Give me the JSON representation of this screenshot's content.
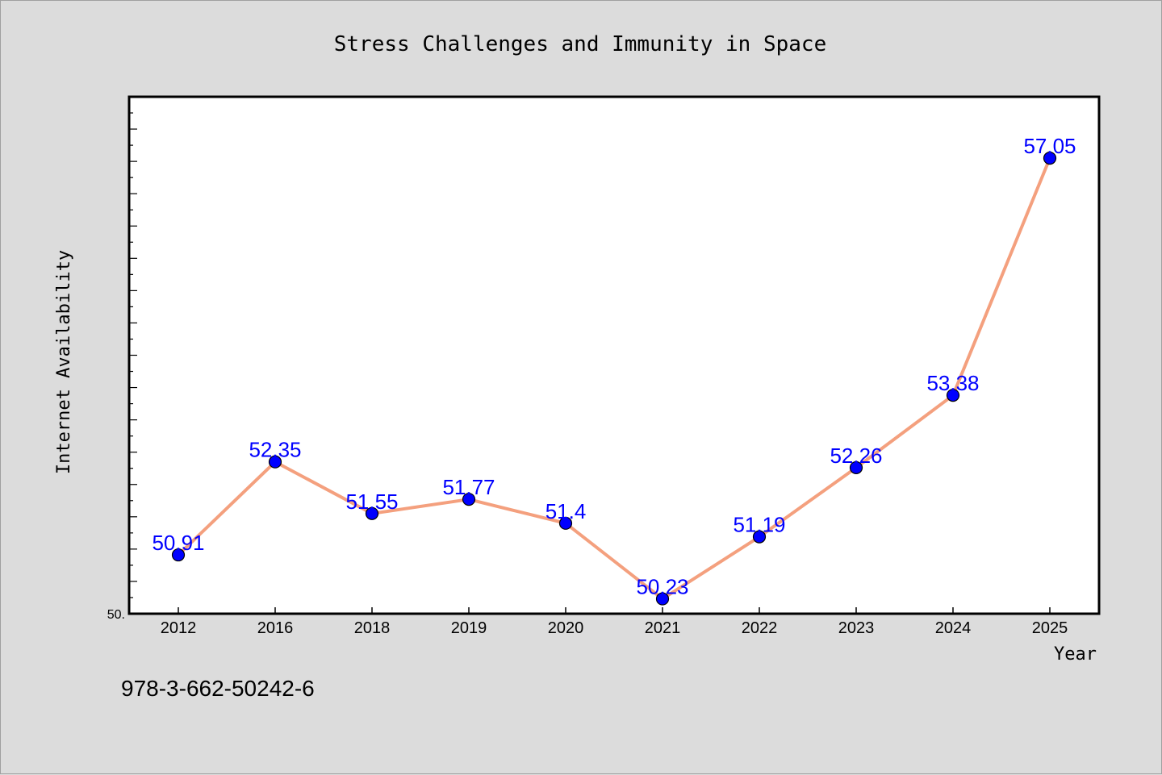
{
  "chart_data": {
    "type": "line",
    "title": "Stress Challenges and Immunity in Space",
    "xlabel": "Year",
    "ylabel": "Internet Availability",
    "categories": [
      "2012",
      "2016",
      "2018",
      "2019",
      "2020",
      "2021",
      "2022",
      "2023",
      "2024",
      "2025"
    ],
    "series": [
      {
        "values": [
          50.91,
          52.35,
          51.55,
          51.77,
          51.4,
          50.23,
          51.19,
          52.26,
          53.38,
          57.05
        ],
        "labels": [
          "50.91",
          "52.35",
          "51.55",
          "51.77",
          "51.4",
          "50.23",
          "51.19",
          "52.26",
          "53.38",
          "57.05"
        ]
      }
    ],
    "ylim": [
      50,
      58
    ],
    "y_tick_label": "50.",
    "grid": false,
    "colors": {
      "line": "#f4a07e",
      "marker": "#0000ff",
      "label": "#0000ff",
      "axes": "#000000",
      "plot_bg": "#ffffff",
      "figure_bg": "#dcdcdc"
    }
  },
  "annotation": {
    "isbn": "978-3-662-50242-6"
  }
}
